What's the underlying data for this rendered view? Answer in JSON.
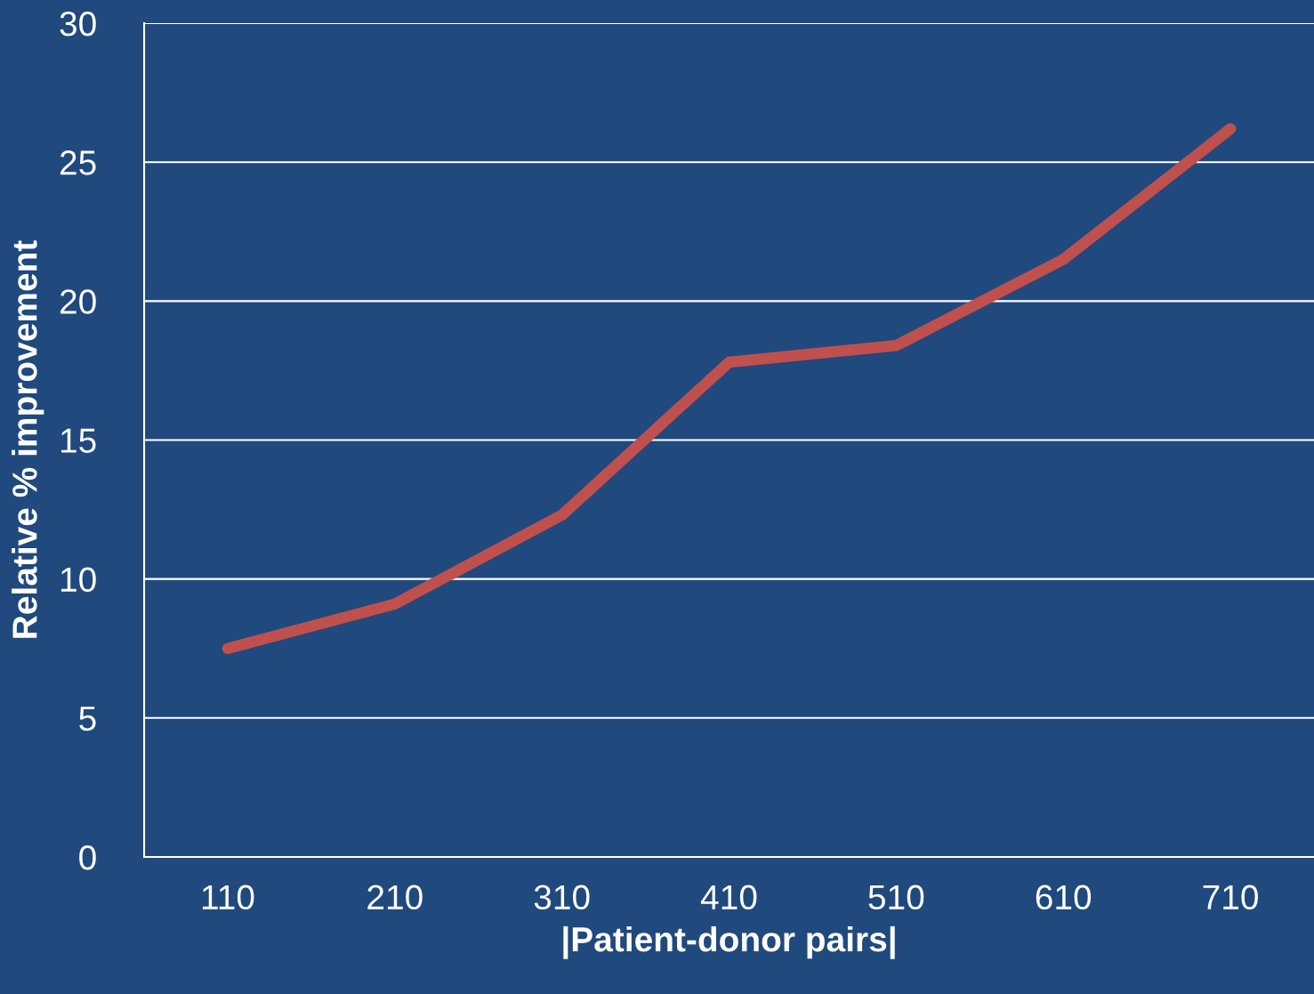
{
  "chart_data": {
    "type": "line",
    "xlabel": "|Patient-donor pairs|",
    "ylabel": "Relative % improvement",
    "categories": [
      "110",
      "210",
      "310",
      "410",
      "510",
      "610",
      "710"
    ],
    "series": [
      {
        "color": "#c0504d",
        "values": [
          7.5,
          9.1,
          12.3,
          17.8,
          18.4,
          21.5,
          26.2
        ]
      }
    ],
    "ylim": [
      0,
      30
    ],
    "yticks": [
      0,
      5,
      10,
      15,
      20,
      25,
      30
    ],
    "grid": "y",
    "marker": "none",
    "line_style": "solid"
  }
}
